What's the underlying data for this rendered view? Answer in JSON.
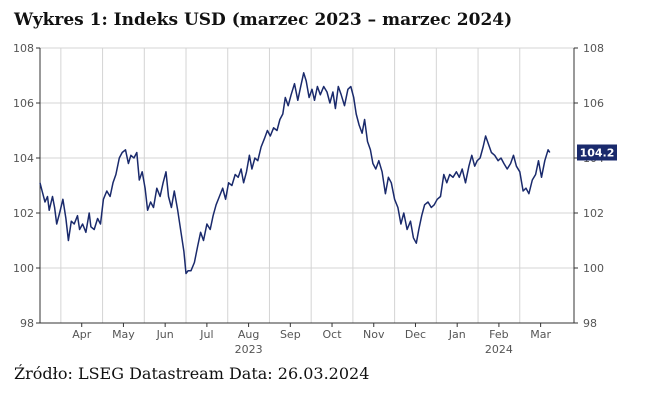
{
  "title": "Wykres 1: Indeks USD (marzec 2023 – marzec 2024)",
  "source": "Źródło: LSEG Datastream Data: 26.03.2024",
  "colors": {
    "line": "#1a2a6c",
    "grid": "#d4d4d4",
    "axis": "#333333",
    "label_bg": "#1a2a6c",
    "label_text": "#ffffff",
    "tick_text": "#555555"
  },
  "chart_data": {
    "type": "line",
    "title": "Indeks USD",
    "xlabel": "",
    "ylabel": "",
    "x_range": [
      0,
      12.8
    ],
    "ylim": [
      98,
      108
    ],
    "y_ticks": [
      98,
      100,
      102,
      104,
      106,
      108
    ],
    "y_tick_labels": [
      "98",
      "100",
      "102",
      "104",
      "106",
      "108"
    ],
    "grid": true,
    "months": [
      {
        "label": "Apr",
        "x": 1
      },
      {
        "label": "May",
        "x": 2
      },
      {
        "label": "Jun",
        "x": 3
      },
      {
        "label": "Jul",
        "x": 4
      },
      {
        "label": "Aug",
        "x": 5
      },
      {
        "label": "Sep",
        "x": 6
      },
      {
        "label": "Oct",
        "x": 7
      },
      {
        "label": "Nov",
        "x": 8
      },
      {
        "label": "Dec",
        "x": 9
      },
      {
        "label": "Jan",
        "x": 10
      },
      {
        "label": "Feb",
        "x": 11
      },
      {
        "label": "Mar",
        "x": 12
      }
    ],
    "years": [
      {
        "label": "2023",
        "x": 5
      },
      {
        "label": "2024",
        "x": 11
      }
    ],
    "last_value_label": "104.2",
    "last_value": 104.2,
    "series": [
      {
        "name": "Indeks USD",
        "points": [
          [
            0.0,
            103.1
          ],
          [
            0.05,
            102.8
          ],
          [
            0.12,
            102.4
          ],
          [
            0.18,
            102.6
          ],
          [
            0.22,
            102.1
          ],
          [
            0.3,
            102.6
          ],
          [
            0.35,
            102.2
          ],
          [
            0.4,
            101.6
          ],
          [
            0.47,
            102.0
          ],
          [
            0.55,
            102.5
          ],
          [
            0.62,
            101.8
          ],
          [
            0.68,
            101.0
          ],
          [
            0.75,
            101.7
          ],
          [
            0.82,
            101.6
          ],
          [
            0.9,
            101.9
          ],
          [
            0.95,
            101.4
          ],
          [
            1.02,
            101.6
          ],
          [
            1.1,
            101.3
          ],
          [
            1.18,
            102.0
          ],
          [
            1.22,
            101.5
          ],
          [
            1.3,
            101.4
          ],
          [
            1.38,
            101.8
          ],
          [
            1.45,
            101.6
          ],
          [
            1.52,
            102.5
          ],
          [
            1.6,
            102.8
          ],
          [
            1.68,
            102.6
          ],
          [
            1.75,
            103.1
          ],
          [
            1.82,
            103.4
          ],
          [
            1.9,
            104.0
          ],
          [
            1.97,
            104.2
          ],
          [
            2.05,
            104.3
          ],
          [
            2.12,
            103.8
          ],
          [
            2.18,
            104.1
          ],
          [
            2.25,
            104.0
          ],
          [
            2.32,
            104.2
          ],
          [
            2.38,
            103.2
          ],
          [
            2.45,
            103.5
          ],
          [
            2.52,
            102.9
          ],
          [
            2.58,
            102.1
          ],
          [
            2.65,
            102.4
          ],
          [
            2.72,
            102.2
          ],
          [
            2.8,
            102.9
          ],
          [
            2.88,
            102.6
          ],
          [
            2.95,
            103.1
          ],
          [
            3.02,
            103.5
          ],
          [
            3.08,
            102.6
          ],
          [
            3.15,
            102.2
          ],
          [
            3.22,
            102.8
          ],
          [
            3.3,
            102.1
          ],
          [
            3.38,
            101.3
          ],
          [
            3.45,
            100.6
          ],
          [
            3.5,
            99.8
          ],
          [
            3.55,
            99.9
          ],
          [
            3.62,
            99.9
          ],
          [
            3.7,
            100.2
          ],
          [
            3.78,
            100.8
          ],
          [
            3.85,
            101.3
          ],
          [
            3.92,
            101.0
          ],
          [
            4.0,
            101.6
          ],
          [
            4.08,
            101.4
          ],
          [
            4.15,
            101.9
          ],
          [
            4.22,
            102.3
          ],
          [
            4.3,
            102.6
          ],
          [
            4.38,
            102.9
          ],
          [
            4.45,
            102.5
          ],
          [
            4.52,
            103.1
          ],
          [
            4.6,
            103.0
          ],
          [
            4.68,
            103.4
          ],
          [
            4.75,
            103.3
          ],
          [
            4.82,
            103.6
          ],
          [
            4.88,
            103.1
          ],
          [
            4.95,
            103.5
          ],
          [
            5.02,
            104.1
          ],
          [
            5.08,
            103.6
          ],
          [
            5.15,
            104.0
          ],
          [
            5.22,
            103.9
          ],
          [
            5.3,
            104.4
          ],
          [
            5.38,
            104.7
          ],
          [
            5.45,
            105.0
          ],
          [
            5.52,
            104.8
          ],
          [
            5.6,
            105.1
          ],
          [
            5.68,
            105.0
          ],
          [
            5.75,
            105.4
          ],
          [
            5.82,
            105.6
          ],
          [
            5.88,
            106.2
          ],
          [
            5.95,
            105.9
          ],
          [
            6.02,
            106.3
          ],
          [
            6.1,
            106.7
          ],
          [
            6.18,
            106.1
          ],
          [
            6.25,
            106.6
          ],
          [
            6.32,
            107.1
          ],
          [
            6.38,
            106.8
          ],
          [
            6.45,
            106.2
          ],
          [
            6.52,
            106.5
          ],
          [
            6.58,
            106.1
          ],
          [
            6.65,
            106.6
          ],
          [
            6.72,
            106.3
          ],
          [
            6.8,
            106.6
          ],
          [
            6.88,
            106.4
          ],
          [
            6.95,
            106.0
          ],
          [
            7.02,
            106.4
          ],
          [
            7.08,
            105.8
          ],
          [
            7.15,
            106.6
          ],
          [
            7.22,
            106.3
          ],
          [
            7.3,
            105.9
          ],
          [
            7.38,
            106.5
          ],
          [
            7.45,
            106.6
          ],
          [
            7.52,
            106.2
          ],
          [
            7.58,
            105.6
          ],
          [
            7.65,
            105.2
          ],
          [
            7.72,
            104.9
          ],
          [
            7.78,
            105.4
          ],
          [
            7.85,
            104.6
          ],
          [
            7.92,
            104.3
          ],
          [
            7.98,
            103.8
          ],
          [
            8.05,
            103.6
          ],
          [
            8.12,
            103.9
          ],
          [
            8.2,
            103.5
          ],
          [
            8.28,
            102.7
          ],
          [
            8.35,
            103.3
          ],
          [
            8.42,
            103.1
          ],
          [
            8.5,
            102.5
          ],
          [
            8.58,
            102.2
          ],
          [
            8.65,
            101.6
          ],
          [
            8.72,
            102.0
          ],
          [
            8.8,
            101.4
          ],
          [
            8.88,
            101.7
          ],
          [
            8.95,
            101.1
          ],
          [
            9.02,
            100.9
          ],
          [
            9.08,
            101.4
          ],
          [
            9.15,
            101.9
          ],
          [
            9.22,
            102.3
          ],
          [
            9.3,
            102.4
          ],
          [
            9.38,
            102.2
          ],
          [
            9.45,
            102.3
          ],
          [
            9.52,
            102.5
          ],
          [
            9.6,
            102.6
          ],
          [
            9.68,
            103.4
          ],
          [
            9.75,
            103.1
          ],
          [
            9.82,
            103.4
          ],
          [
            9.9,
            103.3
          ],
          [
            9.98,
            103.5
          ],
          [
            10.05,
            103.3
          ],
          [
            10.12,
            103.6
          ],
          [
            10.2,
            103.1
          ],
          [
            10.28,
            103.7
          ],
          [
            10.35,
            104.1
          ],
          [
            10.42,
            103.7
          ],
          [
            10.48,
            103.9
          ],
          [
            10.55,
            104.0
          ],
          [
            10.62,
            104.4
          ],
          [
            10.68,
            104.8
          ],
          [
            10.75,
            104.5
          ],
          [
            10.82,
            104.2
          ],
          [
            10.9,
            104.1
          ],
          [
            10.98,
            103.9
          ],
          [
            11.05,
            104.0
          ],
          [
            11.12,
            103.8
          ],
          [
            11.2,
            103.6
          ],
          [
            11.28,
            103.8
          ],
          [
            11.35,
            104.1
          ],
          [
            11.42,
            103.7
          ],
          [
            11.5,
            103.5
          ],
          [
            11.58,
            102.8
          ],
          [
            11.65,
            102.9
          ],
          [
            11.72,
            102.7
          ],
          [
            11.8,
            103.2
          ],
          [
            11.88,
            103.4
          ],
          [
            11.95,
            103.9
          ],
          [
            12.02,
            103.3
          ],
          [
            12.1,
            103.9
          ],
          [
            12.18,
            104.3
          ],
          [
            12.22,
            104.2
          ]
        ]
      }
    ]
  }
}
